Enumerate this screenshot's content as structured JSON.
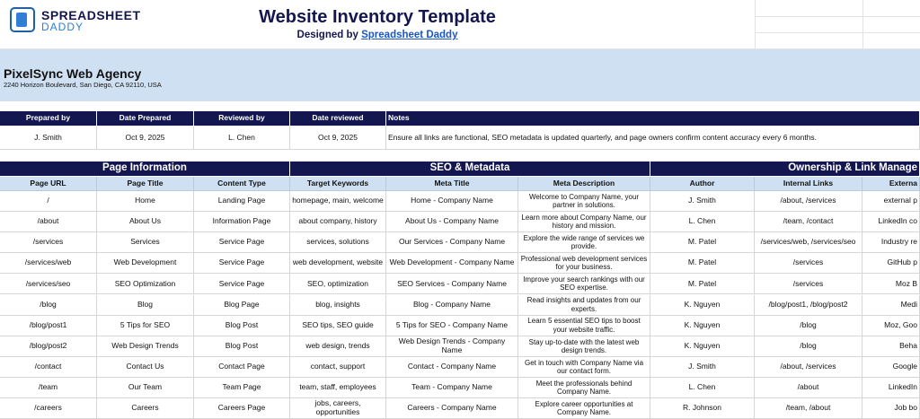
{
  "header": {
    "logo_line1": "SPREADSHEET",
    "logo_line2": "DADDY",
    "title": "Website Inventory Template",
    "subtitle": "Designed by",
    "link": "Spreadsheet Daddy"
  },
  "company": {
    "name": "PixelSync Web Agency",
    "address": "2240 Horizon Boulevard, San Diego, CA 92110, USA"
  },
  "prep_table": {
    "headers": [
      "Prepared by",
      "Date Prepared",
      "Reviewed by",
      "Date reviewed",
      "Notes"
    ],
    "values": [
      "J. Smith",
      "Oct 9, 2025",
      "L. Chen",
      "Oct 9, 2025",
      "Ensure all links are functional, SEO metadata is updated quarterly, and page owners confirm content accuracy every 6 months."
    ]
  },
  "inventory": {
    "sections": [
      "Page Information",
      "SEO & Metadata",
      "Ownership & Link Manage"
    ],
    "columns": [
      "Page URL",
      "Page Title",
      "Content Type",
      "Target Keywords",
      "Meta Title",
      "Meta Description",
      "Author",
      "Internal Links",
      "Externa"
    ],
    "rows": [
      [
        "/",
        "Home",
        "Landing Page",
        "homepage, main, welcome",
        "Home - Company Name",
        "Welcome to Company Name, your partner in solutions.",
        "J. Smith",
        "/about, /services",
        "external p"
      ],
      [
        "/about",
        "About Us",
        "Information Page",
        "about company, history",
        "About Us - Company Name",
        "Learn more about Company Name, our history and mission.",
        "L. Chen",
        "/team, /contact",
        "LinkedIn co"
      ],
      [
        "/services",
        "Services",
        "Service Page",
        "services, solutions",
        "Our Services - Company Name",
        "Explore the wide range of services we provide.",
        "M. Patel",
        "/services/web, /services/seo",
        "Industry re"
      ],
      [
        "/services/web",
        "Web Development",
        "Service Page",
        "web development, website",
        "Web Development - Company Name",
        "Professional web development services for your business.",
        "M. Patel",
        "/services",
        "GitHub p"
      ],
      [
        "/services/seo",
        "SEO Optimization",
        "Service Page",
        "SEO, optimization",
        "SEO Services - Company Name",
        "Improve your search rankings with our SEO expertise.",
        "M. Patel",
        "/services",
        "Moz B"
      ],
      [
        "/blog",
        "Blog",
        "Blog Page",
        "blog, insights",
        "Blog - Company Name",
        "Read insights and updates from our experts.",
        "K. Nguyen",
        "/blog/post1, /blog/post2",
        "Medi"
      ],
      [
        "/blog/post1",
        "5 Tips for SEO",
        "Blog Post",
        "SEO tips, SEO guide",
        "5 Tips for SEO - Company Name",
        "Learn 5 essential SEO tips to boost your website traffic.",
        "K. Nguyen",
        "/blog",
        "Moz, Goo"
      ],
      [
        "/blog/post2",
        "Web Design Trends",
        "Blog Post",
        "web design, trends",
        "Web Design Trends - Company Name",
        "Stay up-to-date with the latest web design trends.",
        "K. Nguyen",
        "/blog",
        "Beha"
      ],
      [
        "/contact",
        "Contact Us",
        "Contact Page",
        "contact, support",
        "Contact - Company Name",
        "Get in touch with Company Name via our contact form.",
        "J. Smith",
        "/about, /services",
        "Google"
      ],
      [
        "/team",
        "Our Team",
        "Team Page",
        "team, staff, employees",
        "Team - Company Name",
        "Meet the professionals behind Company Name.",
        "L. Chen",
        "/about",
        "LinkedIn"
      ],
      [
        "/careers",
        "Careers",
        "Careers Page",
        "jobs, careers, opportunities",
        "Careers - Company Name",
        "Explore career opportunities at Company Name.",
        "R. Johnson",
        "/team, /about",
        "Job bo"
      ]
    ]
  }
}
